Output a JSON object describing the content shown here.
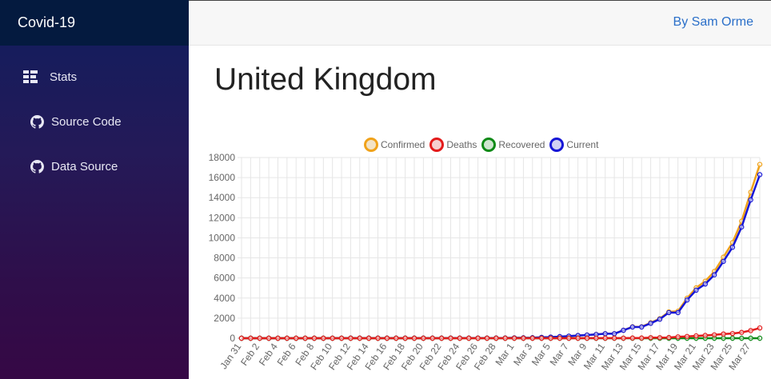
{
  "app": {
    "title": "Covid-19"
  },
  "sidebar": {
    "items": [
      {
        "label": "Stats",
        "icon": "grid-list-icon"
      },
      {
        "label": "Source Code",
        "icon": "github-icon"
      },
      {
        "label": "Data Source",
        "icon": "github-icon"
      }
    ]
  },
  "header": {
    "author_link": "By Sam Orme"
  },
  "main": {
    "country": "United Kingdom"
  },
  "colors": {
    "confirmed": "#f0a21a",
    "deaths": "#e31b1b",
    "recovered": "#0f8a17",
    "current": "#1616d6"
  },
  "chart_data": {
    "type": "line",
    "ylim": [
      0,
      18000
    ],
    "yticks": [
      0,
      2000,
      4000,
      6000,
      8000,
      10000,
      12000,
      14000,
      16000,
      18000
    ],
    "grid": true,
    "legend_position": "top-center",
    "x": [
      "Jan 31",
      "Feb 1",
      "Feb 2",
      "Feb 3",
      "Feb 4",
      "Feb 5",
      "Feb 6",
      "Feb 7",
      "Feb 8",
      "Feb 9",
      "Feb 10",
      "Feb 11",
      "Feb 12",
      "Feb 13",
      "Feb 14",
      "Feb 15",
      "Feb 16",
      "Feb 17",
      "Feb 18",
      "Feb 19",
      "Feb 20",
      "Feb 21",
      "Feb 22",
      "Feb 23",
      "Feb 24",
      "Feb 25",
      "Feb 26",
      "Feb 27",
      "Feb 28",
      "Feb 29",
      "Mar 1",
      "Mar 2",
      "Mar 3",
      "Mar 4",
      "Mar 5",
      "Mar 6",
      "Mar 7",
      "Mar 8",
      "Mar 9",
      "Mar 10",
      "Mar 11",
      "Mar 12",
      "Mar 13",
      "Mar 14",
      "Mar 15",
      "Mar 16",
      "Mar 17",
      "Mar 18",
      "Mar 19",
      "Mar 20",
      "Mar 21",
      "Mar 22",
      "Mar 23",
      "Mar 24",
      "Mar 25",
      "Mar 26",
      "Mar 27",
      "Mar 28"
    ],
    "xtick_labels": [
      "Jan 31",
      "Feb 2",
      "Feb 4",
      "Feb 6",
      "Feb 8",
      "Feb 10",
      "Feb 12",
      "Feb 14",
      "Feb 16",
      "Feb 18",
      "Feb 20",
      "Feb 22",
      "Feb 24",
      "Feb 26",
      "Feb 28",
      "Mar 1",
      "Mar 3",
      "Mar 5",
      "Mar 7",
      "Mar 9",
      "Mar 11",
      "Mar 13",
      "Mar 15",
      "Mar 17",
      "Mar 19",
      "Mar 21",
      "Mar 23",
      "Mar 25",
      "Mar 27"
    ],
    "series": [
      {
        "name": "Confirmed",
        "color": "#f0a21a",
        "values": [
          2,
          2,
          2,
          2,
          2,
          2,
          3,
          3,
          3,
          3,
          8,
          8,
          9,
          9,
          9,
          9,
          9,
          9,
          9,
          9,
          9,
          9,
          9,
          13,
          13,
          13,
          15,
          15,
          20,
          23,
          36,
          40,
          51,
          85,
          115,
          163,
          206,
          273,
          321,
          382,
          456,
          456,
          798,
          1140,
          1140,
          1543,
          1950,
          2626,
          2689,
          3983,
          5018,
          5683,
          6650,
          8077,
          9529,
          11658,
          14543,
          17312
        ]
      },
      {
        "name": "Deaths",
        "color": "#e31b1b",
        "values": [
          0,
          0,
          0,
          0,
          0,
          0,
          0,
          0,
          0,
          0,
          0,
          0,
          0,
          0,
          0,
          0,
          0,
          0,
          0,
          0,
          0,
          0,
          0,
          0,
          0,
          0,
          0,
          0,
          0,
          0,
          0,
          0,
          0,
          0,
          1,
          2,
          2,
          3,
          4,
          6,
          8,
          8,
          8,
          21,
          21,
          56,
          56,
          72,
          138,
          178,
          234,
          282,
          336,
          423,
          466,
          580,
          761,
          1021
        ]
      },
      {
        "name": "Recovered",
        "color": "#0f8a17",
        "values": [
          0,
          0,
          0,
          0,
          0,
          0,
          0,
          0,
          0,
          0,
          0,
          0,
          0,
          0,
          0,
          0,
          0,
          0,
          0,
          0,
          0,
          0,
          0,
          0,
          0,
          0,
          0,
          0,
          0,
          0,
          0,
          0,
          0,
          0,
          0,
          0,
          0,
          0,
          0,
          0,
          0,
          0,
          0,
          0,
          0,
          0,
          0,
          0,
          0,
          0,
          0,
          0,
          0,
          0,
          0,
          0,
          0,
          0
        ]
      },
      {
        "name": "Current",
        "color": "#1616d6",
        "values": [
          2,
          2,
          2,
          2,
          2,
          2,
          3,
          3,
          3,
          3,
          8,
          8,
          9,
          9,
          9,
          9,
          9,
          9,
          9,
          9,
          9,
          9,
          9,
          13,
          13,
          13,
          15,
          15,
          20,
          23,
          36,
          40,
          51,
          85,
          114,
          161,
          204,
          270,
          317,
          376,
          448,
          448,
          790,
          1119,
          1119,
          1487,
          1894,
          2554,
          2551,
          3805,
          4784,
          5401,
          6314,
          7654,
          9063,
          11078,
          13782,
          16291
        ]
      }
    ]
  }
}
